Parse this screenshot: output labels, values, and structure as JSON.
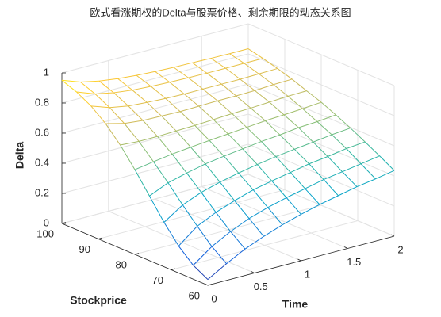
{
  "chart_data": {
    "type": "mesh3d",
    "title": "欧式看涨期权的Delta与股票价格、剩余期限的动态关系图",
    "xlabel": "Time",
    "ylabel": "Stockprice",
    "zlabel": "Delta",
    "x": [
      0,
      0.2,
      0.4,
      0.6,
      0.8,
      1,
      1.2,
      1.4,
      1.6,
      1.8,
      2
    ],
    "y": [
      60,
      64,
      68,
      72,
      76,
      80,
      84,
      88,
      92,
      96,
      100
    ],
    "z": [
      [
        0.039,
        0.092,
        0.179,
        0.295,
        0.429,
        0.563,
        0.685,
        0.786,
        0.862,
        0.915,
        0.951
      ],
      [
        0.111,
        0.184,
        0.278,
        0.378,
        0.484,
        0.583,
        0.677,
        0.755,
        0.819,
        0.869,
        0.907
      ],
      [
        0.176,
        0.251,
        0.337,
        0.429,
        0.516,
        0.601,
        0.677,
        0.742,
        0.797,
        0.844,
        0.881
      ],
      [
        0.227,
        0.305,
        0.382,
        0.464,
        0.544,
        0.614,
        0.681,
        0.739,
        0.788,
        0.829,
        0.864
      ],
      [
        0.271,
        0.345,
        0.421,
        0.492,
        0.563,
        0.626,
        0.685,
        0.736,
        0.782,
        0.821,
        0.853
      ],
      [
        0.308,
        0.378,
        0.448,
        0.516,
        0.579,
        0.637,
        0.691,
        0.739,
        0.779,
        0.816,
        0.846
      ],
      [
        0.341,
        0.405,
        0.472,
        0.536,
        0.595,
        0.648,
        0.698,
        0.742,
        0.779,
        0.813,
        0.841
      ],
      [
        0.367,
        0.433,
        0.496,
        0.552,
        0.606,
        0.659,
        0.702,
        0.742,
        0.779,
        0.811,
        0.839
      ],
      [
        0.394,
        0.452,
        0.512,
        0.567,
        0.622,
        0.666,
        0.709,
        0.745,
        0.779,
        0.811,
        0.836
      ],
      [
        0.413,
        0.472,
        0.532,
        0.583,
        0.629,
        0.674,
        0.716,
        0.752,
        0.782,
        0.811,
        0.834
      ],
      [
        0.436,
        0.492,
        0.544,
        0.595,
        0.641,
        0.684,
        0.719,
        0.755,
        0.785,
        0.811,
        0.834
      ]
    ],
    "xlim": [
      0,
      2
    ],
    "ylim": [
      60,
      100
    ],
    "zlim": [
      0,
      1
    ],
    "xticks": [
      0,
      0.5,
      1,
      1.5,
      2
    ],
    "yticks": [
      60,
      70,
      80,
      90,
      100
    ],
    "zticks": [
      0,
      0.2,
      0.4,
      0.6,
      0.8,
      1
    ],
    "grid": true,
    "colormap": [
      "#352a87",
      "#0f5cdd",
      "#1481d6",
      "#06a4ca",
      "#2eb7a4",
      "#87bf77",
      "#d1bb59",
      "#fec832",
      "#f9fb0e"
    ]
  }
}
